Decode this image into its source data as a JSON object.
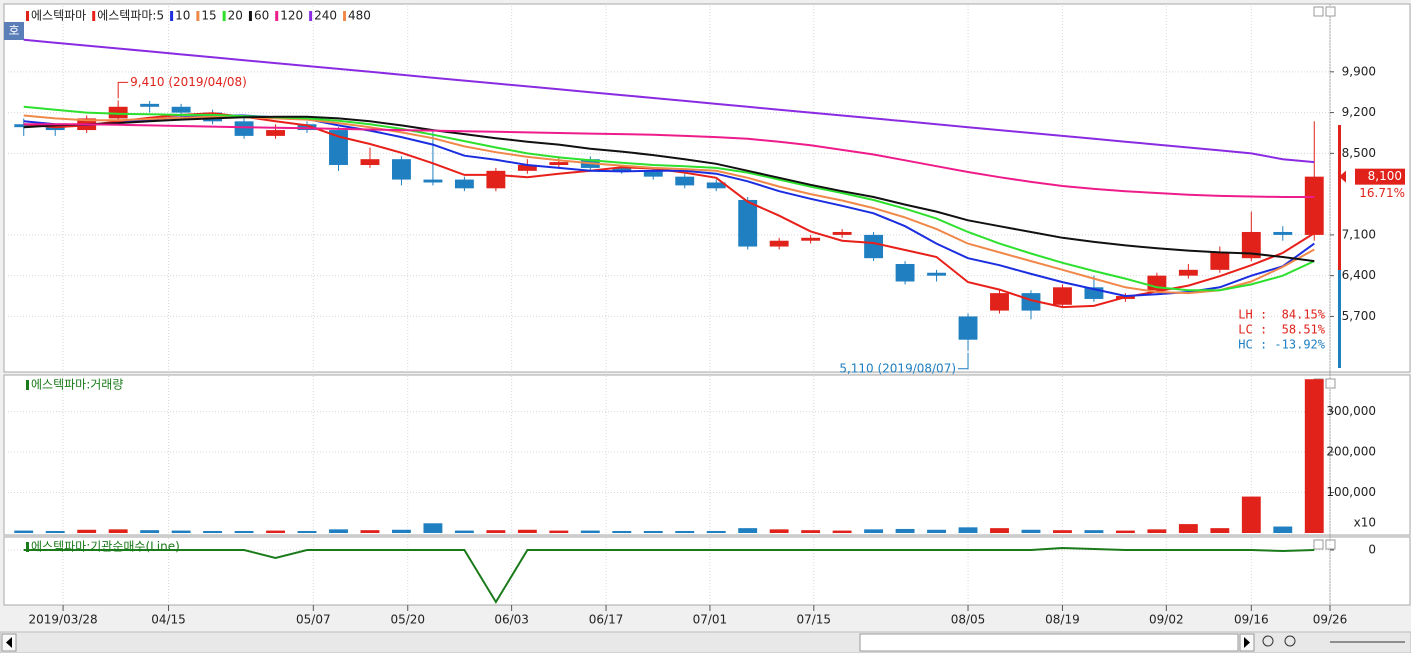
{
  "chart_data": [
    {
      "type": "candlestick",
      "name": "에스텍파마",
      "up_color": "#e0221b",
      "down_color": "#1f7fc1",
      "open": [
        9000,
        8950,
        8900,
        9100,
        9350,
        9300,
        9200,
        9050,
        8800,
        9000,
        8900,
        8300,
        8400,
        8050,
        8050,
        7900,
        8200,
        8300,
        8400,
        8250,
        8200,
        8100,
        8000,
        7700,
        6900,
        7000,
        7100,
        7100,
        6600,
        6450,
        5700,
        5800,
        6100,
        5900,
        6200,
        6000,
        6150,
        6400,
        6500,
        6700,
        7150,
        7100
      ],
      "high": [
        9100,
        9000,
        9150,
        9410,
        9400,
        9350,
        9250,
        9100,
        9000,
        9050,
        8950,
        8600,
        8450,
        8900,
        8100,
        8250,
        8400,
        8450,
        8450,
        8300,
        8250,
        8150,
        8050,
        7750,
        7050,
        7100,
        7200,
        7150,
        6650,
        6500,
        5750,
        6150,
        6150,
        6250,
        6400,
        6100,
        6450,
        6600,
        6900,
        7500,
        7250,
        9050
      ],
      "low": [
        8800,
        8800,
        8850,
        9050,
        9200,
        9100,
        9000,
        8750,
        8750,
        8850,
        8200,
        8250,
        7950,
        7950,
        7850,
        7850,
        8150,
        8250,
        8200,
        8150,
        8050,
        7900,
        7850,
        6850,
        6850,
        6950,
        7050,
        6650,
        6250,
        6300,
        5110,
        5750,
        5650,
        5850,
        5950,
        5950,
        6100,
        6350,
        6450,
        6650,
        7000,
        7000
      ],
      "close": [
        8950,
        8900,
        9100,
        9300,
        9300,
        9200,
        9050,
        8800,
        8900,
        8900,
        8300,
        8400,
        8050,
        8000,
        7900,
        8200,
        8300,
        8350,
        8250,
        8200,
        8100,
        7950,
        7900,
        6900,
        7000,
        7050,
        7150,
        6700,
        6300,
        6400,
        5300,
        6100,
        5800,
        6200,
        6000,
        6050,
        6400,
        6500,
        6800,
        7150,
        7100,
        8100
      ],
      "series": [
        {
          "name": "에스텍파마:5",
          "color": "#e8201a",
          "values": [
            9000,
            8950,
            8980,
            9050,
            9110,
            9160,
            9190,
            9130,
            9050,
            8980,
            8790,
            8660,
            8510,
            8330,
            8130,
            8130,
            8090,
            8150,
            8200,
            8260,
            8240,
            8170,
            8080,
            7670,
            7430,
            7160,
            7000,
            6960,
            6840,
            6720,
            6290,
            6160,
            5980,
            5860,
            5880,
            6030,
            6130,
            6230,
            6390,
            6580,
            6790,
            7130
          ]
        },
        {
          "name": "10",
          "color": "#1a2ee0",
          "values": [
            9050,
            9000,
            8990,
            9020,
            9080,
            9120,
            9150,
            9150,
            9120,
            9090,
            8980,
            8890,
            8780,
            8650,
            8460,
            8390,
            8300,
            8250,
            8200,
            8190,
            8200,
            8200,
            8150,
            8020,
            7850,
            7720,
            7600,
            7470,
            7250,
            6950,
            6700,
            6580,
            6430,
            6290,
            6170,
            6050,
            6080,
            6120,
            6200,
            6400,
            6560,
            6950
          ]
        },
        {
          "name": "15",
          "color": "#f0884a",
          "values": [
            9150,
            9100,
            9070,
            9070,
            9090,
            9110,
            9130,
            9120,
            9100,
            9080,
            9020,
            8950,
            8860,
            8760,
            8620,
            8520,
            8440,
            8380,
            8330,
            8290,
            8250,
            8230,
            8200,
            8080,
            7930,
            7800,
            7690,
            7560,
            7400,
            7200,
            6950,
            6800,
            6650,
            6500,
            6350,
            6200,
            6120,
            6100,
            6150,
            6300,
            6550,
            6850
          ]
        },
        {
          "name": "20",
          "color": "#2ee02e",
          "values": [
            9300,
            9250,
            9200,
            9180,
            9170,
            9160,
            9160,
            9140,
            9120,
            9100,
            9060,
            9000,
            8920,
            8820,
            8710,
            8600,
            8500,
            8430,
            8380,
            8340,
            8300,
            8280,
            8250,
            8170,
            8050,
            7930,
            7820,
            7700,
            7550,
            7380,
            7150,
            6950,
            6780,
            6620,
            6480,
            6350,
            6200,
            6150,
            6150,
            6250,
            6400,
            6650
          ]
        },
        {
          "name": "60",
          "color": "#111111",
          "values": [
            8950,
            8980,
            9000,
            9020,
            9050,
            9080,
            9100,
            9120,
            9130,
            9130,
            9100,
            9050,
            8980,
            8900,
            8830,
            8760,
            8700,
            8650,
            8580,
            8530,
            8470,
            8400,
            8320,
            8200,
            8080,
            7960,
            7850,
            7750,
            7620,
            7500,
            7350,
            7250,
            7150,
            7050,
            6980,
            6920,
            6870,
            6830,
            6800,
            6780,
            6720,
            6650
          ]
        },
        {
          "name": "120",
          "color": "#ee1c8a",
          "values": [
            9000,
            9000,
            9000,
            8990,
            8980,
            8970,
            8960,
            8950,
            8940,
            8930,
            8920,
            8910,
            8900,
            8890,
            8880,
            8870,
            8860,
            8850,
            8840,
            8830,
            8820,
            8800,
            8780,
            8750,
            8700,
            8640,
            8560,
            8480,
            8380,
            8280,
            8180,
            8090,
            8010,
            7940,
            7890,
            7850,
            7820,
            7790,
            7770,
            7760,
            7750,
            7750
          ]
        },
        {
          "name": "240",
          "color": "#8a2be2",
          "values": [
            10450,
            10400,
            10350,
            10300,
            10250,
            10200,
            10150,
            10100,
            10050,
            10000,
            9950,
            9900,
            9850,
            9800,
            9750,
            9700,
            9650,
            9600,
            9550,
            9500,
            9450,
            9400,
            9350,
            9300,
            9250,
            9200,
            9150,
            9100,
            9050,
            9000,
            8950,
            8900,
            8850,
            8800,
            8750,
            8700,
            8650,
            8600,
            8550,
            8500,
            8400,
            8350
          ]
        },
        {
          "name": "480",
          "color": "#f0884a",
          "values": [
            null,
            null,
            null,
            null,
            null,
            null,
            null,
            null,
            null,
            null,
            null,
            null,
            null,
            null,
            null,
            null,
            null,
            null,
            null,
            null,
            null,
            null,
            null,
            null,
            null,
            null,
            null,
            null,
            null,
            null,
            null,
            null,
            null,
            null,
            null,
            null,
            null,
            null,
            null,
            null,
            null,
            null
          ]
        }
      ],
      "ylim": [
        4780,
        10790
      ],
      "yticks": [
        {
          "value": 5700,
          "label": "5,700"
        },
        {
          "value": 6400,
          "label": "6,400"
        },
        {
          "value": 7100,
          "label": "7,100"
        },
        {
          "value": 8500,
          "label": "8,500"
        },
        {
          "value": 9200,
          "label": "9,200"
        },
        {
          "value": 9900,
          "label": "9,900"
        }
      ],
      "xlim": [
        -0.5,
        41.5
      ],
      "xticks": [
        {
          "value": 1.25,
          "label": "2019/03/28"
        },
        {
          "value": 4.6,
          "label": "04/15"
        },
        {
          "value": 9.2,
          "label": "05/07"
        },
        {
          "value": 12.2,
          "label": "05/20"
        },
        {
          "value": 15.5,
          "label": "06/03"
        },
        {
          "value": 18.5,
          "label": "06/17"
        },
        {
          "value": 21.8,
          "label": "07/01"
        },
        {
          "value": 25.1,
          "label": "07/15"
        },
        {
          "value": 30,
          "label": "08/05"
        },
        {
          "value": 33,
          "label": "08/19"
        },
        {
          "value": 36.3,
          "label": "09/02"
        },
        {
          "value": 39,
          "label": "09/16"
        },
        {
          "value": 41.5,
          "label": "09/26"
        }
      ],
      "annotations": [
        {
          "text": "9,410 (2019/04/08)",
          "x": 3,
          "y": 9410
        },
        {
          "text": "5,110 (2019/08/07)",
          "x": 30,
          "y": 5110
        }
      ],
      "last_label": "8,100",
      "change_label": "16.71%",
      "stats": [
        "LH :  84.15%",
        "LC :  58.51%",
        "HC : -13.92%"
      ],
      "grid": true
    },
    {
      "type": "volume",
      "title": "에스텍파마:거래량",
      "values": [
        6000,
        5000,
        8000,
        9000,
        7000,
        6000,
        5000,
        5000,
        6000,
        5000,
        9000,
        7000,
        8000,
        24000,
        6000,
        7000,
        8000,
        6000,
        6000,
        5000,
        5000,
        5000,
        5000,
        12000,
        9000,
        7000,
        6000,
        9000,
        10000,
        8000,
        14000,
        12000,
        8000,
        7000,
        7000,
        6000,
        9000,
        22000,
        12000,
        90000,
        16000,
        380000
      ],
      "ylim": [
        0,
        383000
      ],
      "yticks": [
        {
          "value": 100000,
          "label": "100,000"
        },
        {
          "value": 200000,
          "label": "200,000"
        },
        {
          "value": 300000,
          "label": "300,000"
        }
      ],
      "unit_label": "x10",
      "grid": true
    },
    {
      "type": "line",
      "title": "에스텍파마:기관순매수(Line)",
      "color": "#1a7a1a",
      "values": [
        0,
        0,
        0,
        0,
        0,
        0,
        0,
        0,
        -8,
        0,
        0,
        0,
        0,
        0,
        0,
        -52,
        0,
        0,
        0,
        0,
        0,
        0,
        0,
        0,
        0,
        0,
        0,
        0,
        0,
        0,
        0,
        0,
        0,
        2,
        1,
        0,
        0,
        0,
        0,
        0,
        -1,
        0
      ],
      "ylim": [
        -55,
        10
      ],
      "yticks": [
        0
      ],
      "grid": true
    }
  ]
}
